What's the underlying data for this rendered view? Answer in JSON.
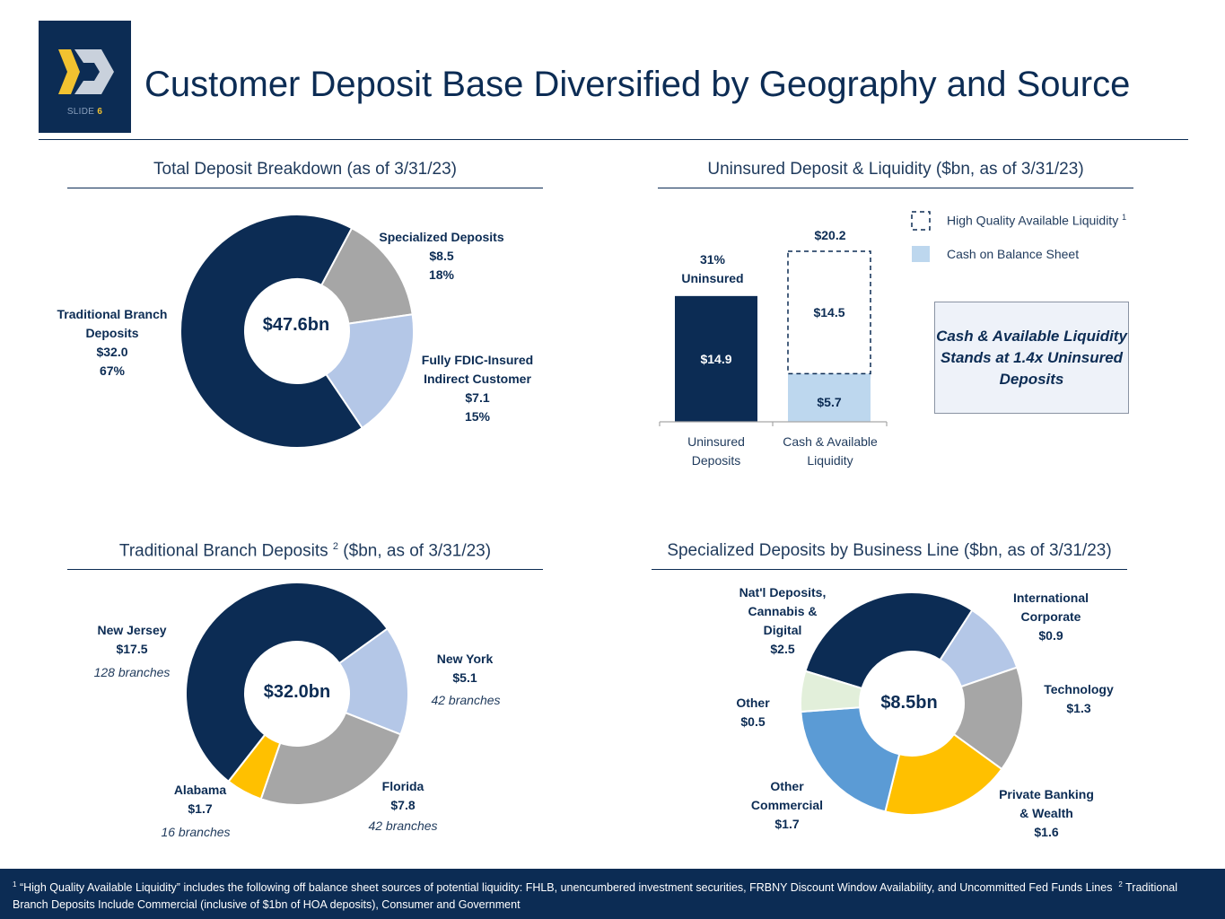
{
  "slide_label": "SLIDE",
  "slide_number": "6",
  "title": "Customer Deposit Base Diversified by Geography and Source",
  "colors": {
    "navy": "#0c2c54",
    "light_blue": "#b4c7e7",
    "gray": "#a6a6a6",
    "yellow": "#ffc000",
    "mid_blue": "#5b9bd5",
    "pale_green": "#e2efda",
    "cash_blue": "#bdd7ee"
  },
  "chart_data": [
    {
      "type": "pie",
      "title": "Total Deposit Breakdown (as of 3/31/23)",
      "center_label": "$47.6bn",
      "slices": [
        {
          "name": "Traditional Branch Deposits",
          "value": 32.0,
          "percent": "67%",
          "value_label": "$32.0",
          "label_lines": [
            "Traditional Branch",
            "Deposits",
            "$32.0",
            "67%"
          ]
        },
        {
          "name": "Fully FDIC-Insured Indirect Customer",
          "value": 7.1,
          "percent": "15%",
          "value_label": "$7.1",
          "label_lines": [
            "Fully FDIC-Insured",
            "Indirect Customer",
            "$7.1",
            "15%"
          ]
        },
        {
          "name": "Specialized Deposits",
          "value": 8.5,
          "percent": "18%",
          "value_label": "$8.5",
          "label_lines": [
            "Specialized Deposits",
            "$8.5",
            "18%"
          ]
        }
      ]
    },
    {
      "type": "bar",
      "title": "Uninsured Deposit & Liquidity ($bn, as of 3/31/23)",
      "categories": [
        "Uninsured Deposits",
        "Cash & Available Liquidity"
      ],
      "category_lines": [
        [
          "Uninsured",
          "Deposits"
        ],
        [
          "Cash & Available",
          "Liquidity"
        ]
      ],
      "series": [
        {
          "name": "Uninsured Deposits",
          "values": [
            14.9,
            0
          ],
          "labels": [
            "$14.9",
            ""
          ]
        },
        {
          "name": "Cash on Balance Sheet",
          "values": [
            0,
            5.7
          ],
          "labels": [
            "",
            "$5.7"
          ]
        },
        {
          "name": "High Quality Available Liquidity",
          "values": [
            0,
            14.5
          ],
          "labels": [
            "",
            "$14.5"
          ]
        }
      ],
      "totals": [
        "31%\nUninsured",
        "$20.2"
      ],
      "total_lines": [
        [
          "31%",
          "Uninsured"
        ],
        [
          "$20.2"
        ]
      ],
      "ylim": [
        0,
        20.2
      ],
      "legend": [
        {
          "label": "High Quality Available Liquidity",
          "footnote": "1",
          "style": "dashed"
        },
        {
          "label": "Cash on Balance Sheet",
          "style": "solid"
        }
      ],
      "callout": "Cash & Available Liquidity Stands at 1.4x Uninsured Deposits"
    },
    {
      "type": "pie",
      "title": "Traditional Branch Deposits",
      "title_footnote": "2",
      "title_suffix": "($bn, as of 3/31/23)",
      "center_label": "$32.0bn",
      "slices": [
        {
          "name": "New Jersey",
          "value": 17.5,
          "value_label": "$17.5",
          "branches": "128 branches"
        },
        {
          "name": "New York",
          "value": 5.1,
          "value_label": "$5.1",
          "branches": "42 branches"
        },
        {
          "name": "Florida",
          "value": 7.8,
          "value_label": "$7.8",
          "branches": "42 branches"
        },
        {
          "name": "Alabama",
          "value": 1.7,
          "value_label": "$1.7",
          "branches": "16 branches"
        }
      ]
    },
    {
      "type": "pie",
      "title": "Specialized Deposits by Business Line ($bn, as of 3/31/23)",
      "center_label": "$8.5bn",
      "slices": [
        {
          "name": "Nat'l Deposits, Cannabis & Digital",
          "value": 2.5,
          "value_label": "$2.5",
          "label_lines": [
            "Nat'l Deposits,",
            "Cannabis &",
            "Digital",
            "$2.5"
          ]
        },
        {
          "name": "International Corporate",
          "value": 0.9,
          "value_label": "$0.9",
          "label_lines": [
            "International",
            "Corporate",
            "$0.9"
          ]
        },
        {
          "name": "Technology",
          "value": 1.3,
          "value_label": "$1.3",
          "label_lines": [
            "Technology",
            "$1.3"
          ]
        },
        {
          "name": "Private Banking & Wealth",
          "value": 1.6,
          "value_label": "$1.6",
          "label_lines": [
            "Private Banking",
            "& Wealth",
            "$1.6"
          ]
        },
        {
          "name": "Other Commercial",
          "value": 1.7,
          "value_label": "$1.7",
          "label_lines": [
            "Other",
            "Commercial",
            "$1.7"
          ]
        },
        {
          "name": "Other",
          "value": 0.5,
          "value_label": "$0.5",
          "label_lines": [
            "Other",
            "$0.5"
          ]
        }
      ]
    }
  ],
  "footnotes": {
    "note1_marker": "1",
    "note1": "“High Quality Available Liquidity” includes the following off balance sheet sources of potential liquidity: FHLB, unencumbered investment securities, FRBNY Discount Window Availability, and Uncommitted Fed Funds Lines",
    "note2_marker": "2",
    "note2": "Traditional Branch Deposits Include Commercial (inclusive of $1bn of HOA deposits), Consumer and Government"
  }
}
